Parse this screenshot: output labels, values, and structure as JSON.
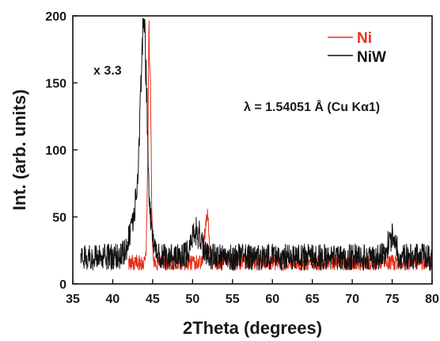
{
  "chart_data": {
    "type": "line",
    "xlabel": "2Theta (degrees)",
    "ylabel": "Int. (arb. units)",
    "xlim": [
      35,
      80
    ],
    "ylim": [
      0,
      200
    ],
    "xticks": [
      35,
      40,
      45,
      50,
      55,
      60,
      65,
      70,
      75,
      80
    ],
    "yticks": [
      0,
      50,
      100,
      150,
      200
    ],
    "legend_position": "top-right",
    "grid": false,
    "annotations": {
      "scale": "x 3.3",
      "wavelength": "λ = 1.54051 Å (Cu Kα1)"
    },
    "series": [
      {
        "name": "Ni",
        "color": "#e8301c",
        "x_range": [
          42,
          80
        ],
        "baseline": 16,
        "noise": 6,
        "peaks": [
          {
            "center": 44.6,
            "height": 190,
            "width": 0.18
          },
          {
            "center": 51.8,
            "height": 40,
            "width": 0.25
          }
        ]
      },
      {
        "name": "NiW",
        "color": "#111111",
        "x_range": [
          36,
          80
        ],
        "baseline": 20,
        "noise": 10,
        "peaks": [
          {
            "center": 43.9,
            "height": 150,
            "width": 0.35
          },
          {
            "center": 43.5,
            "height": 60,
            "width": 0.9
          },
          {
            "center": 50.5,
            "height": 22,
            "width": 0.6
          },
          {
            "center": 74.9,
            "height": 18,
            "width": 0.5
          }
        ]
      }
    ]
  }
}
